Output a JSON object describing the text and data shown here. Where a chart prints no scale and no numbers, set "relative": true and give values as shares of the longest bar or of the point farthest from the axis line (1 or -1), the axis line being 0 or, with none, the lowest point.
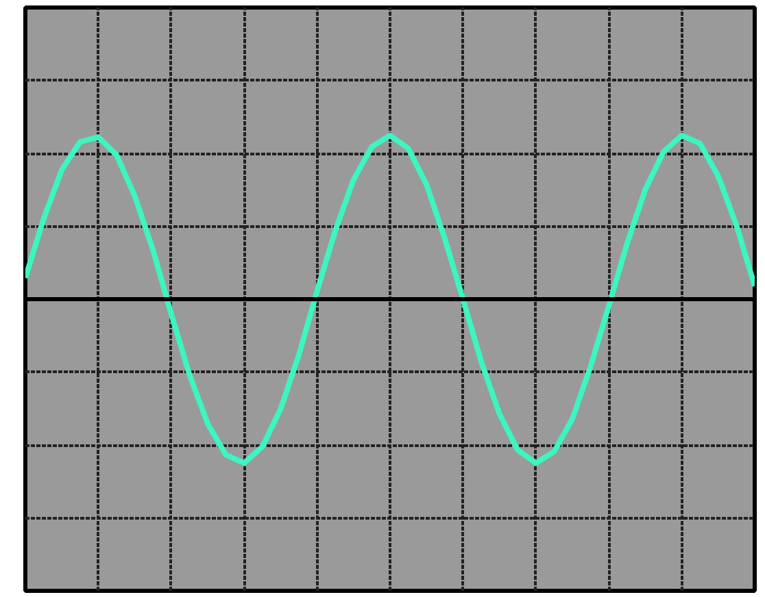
{
  "chart_data": {
    "type": "line",
    "relative": true,
    "grid": true,
    "categories": [
      null,
      null,
      null,
      null,
      null,
      null,
      null,
      null,
      null,
      null,
      null,
      null,
      null,
      null,
      null,
      null,
      null,
      null,
      null,
      null,
      null,
      null,
      null,
      null,
      null,
      null,
      null,
      null,
      null,
      null,
      null,
      null,
      null,
      null,
      null,
      null,
      null,
      null,
      null,
      null,
      null
    ],
    "series": [
      {
        "color": "#3cf5c0",
        "values": [
          0.13,
          0.49,
          0.79,
          0.96,
          0.99,
          0.88,
          0.63,
          0.3,
          -0.09,
          -0.46,
          -0.76,
          -0.95,
          -1.0,
          -0.9,
          -0.67,
          -0.34,
          0.05,
          0.42,
          0.73,
          0.93,
          1.0,
          0.92,
          0.7,
          0.37,
          0.0,
          -0.38,
          -0.7,
          -0.92,
          -1.0,
          -0.93,
          -0.73,
          -0.41,
          -0.04,
          0.34,
          0.67,
          0.9,
          1.0,
          0.95,
          0.75,
          0.45,
          0.08
        ]
      }
    ]
  }
}
